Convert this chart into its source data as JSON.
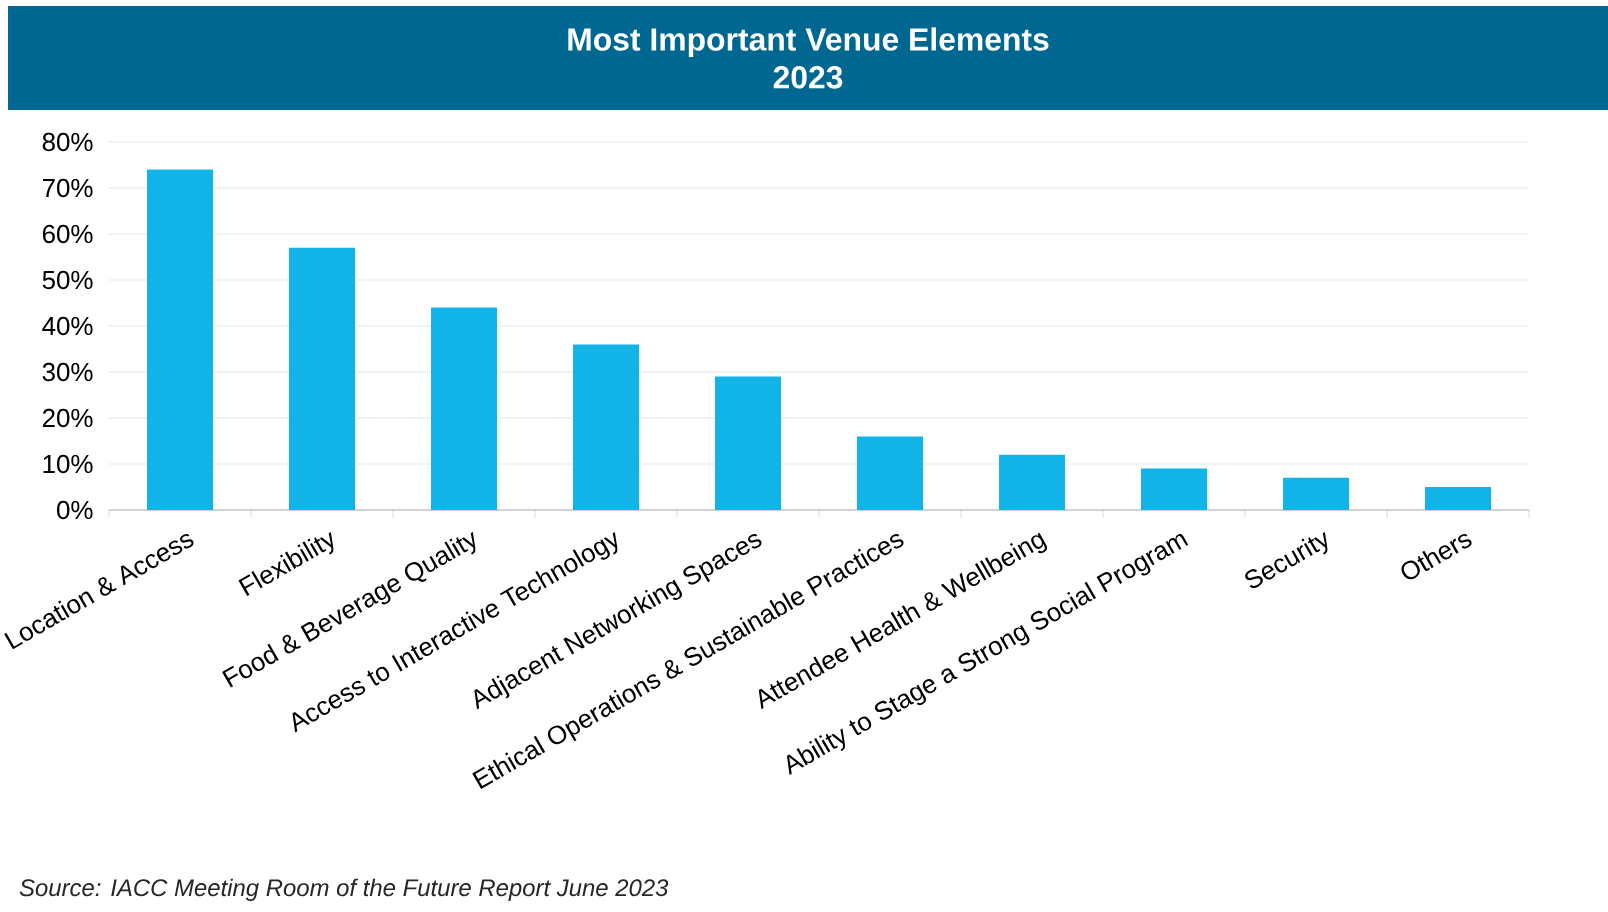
{
  "chart_data": {
    "type": "bar",
    "title": "Most Important Venue Elements",
    "subtitle": "2023",
    "categories": [
      "Location & Access",
      "Flexibility",
      "Food & Beverage Quality",
      "Access to Interactive Technology",
      "Adjacent Networking Spaces",
      "Ethical Operations & Sustainable Practices",
      "Attendee Health & Wellbeing",
      "Ability to Stage a Strong Social Program",
      "Security",
      "Others"
    ],
    "values": [
      74,
      57,
      44,
      36,
      29,
      16,
      12,
      9,
      7,
      5
    ],
    "color": "#12b4e8",
    "ylim": [
      0,
      80
    ],
    "yticks": [
      {
        "value": 0,
        "label": "0%"
      },
      {
        "value": 10,
        "label": "10%"
      },
      {
        "value": 20,
        "label": "20%"
      },
      {
        "value": 30,
        "label": "30%"
      },
      {
        "value": 40,
        "label": "40%"
      },
      {
        "value": 50,
        "label": "50%"
      },
      {
        "value": 60,
        "label": "60%"
      },
      {
        "value": 70,
        "label": "70%"
      },
      {
        "value": 80,
        "label": "80%"
      }
    ],
    "grid": "y",
    "annotations": [
      "Source: IACC Meeting Room of the Future Report June 2023"
    ]
  }
}
